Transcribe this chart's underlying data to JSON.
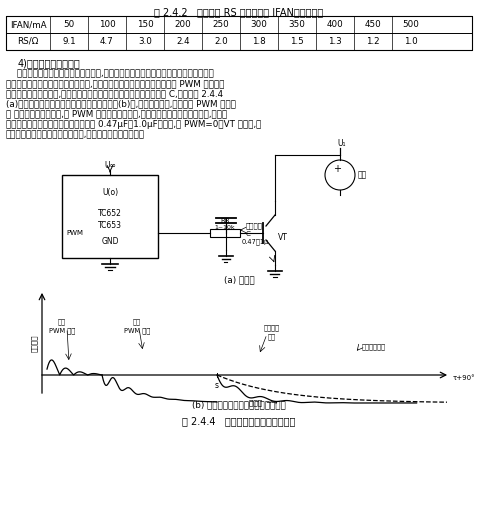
{
  "title": "表 2.4.2   检测电阻 RS 与风扇电流 IFAN的对应关系",
  "table_headers": [
    "IFAN/mA",
    "50",
    "100",
    "150",
    "200",
    "250",
    "300",
    "350",
    "400",
    "450",
    "500"
  ],
  "table_row": [
    "RS/Ω",
    "9.1",
    "4.7",
    "3.0",
    "2.4",
    "2.0",
    "1.8",
    "1.5",
    "1.3",
    "1.2",
    "1.0"
  ],
  "paragraph_title": "4)减小风扇噪声的方法",
  "lines": [
    "    当风扇全速运行时所形成的扰动气流,是产生音频噪声的主要原因。采用风扇转速控制",
    "器能使风扇在低于全速的转速下运行,这有助于减小风扇噪声。对于在调节 PWM 信号的占",
    "空比时所引起音频噪声,可在驱动管的基极与地之间并联一只延迟电容 C,电路如图 2.4.4",
    "(a)所示。风扇转动力矩与电角度的关系曲线见(b)图,加延迟电容后,可滤掉在 PWM 开启风",
    "扇 时所形成的尖峰电压,对 PWM 信号起到平滑作用,使风扇的转动力矩平滑地变化,进而降",
    "低了风扇噪声。延迟电容的容量范围是 0.47μF～1.0μF。此外,当 PWM=0、VT 关断时,延",
    "迟电容还能限制反向电动势的升高,对驱动管起到保护作用。"
  ],
  "caption_a": "(a) 电路图",
  "caption_b": "(b) 风扇转动力矩与电角度的关系曲线",
  "fig_caption": "图 2.4.4   利用延迟电容抑制风扇噪声",
  "bg_color": "#ffffff",
  "text_color": "#000000"
}
